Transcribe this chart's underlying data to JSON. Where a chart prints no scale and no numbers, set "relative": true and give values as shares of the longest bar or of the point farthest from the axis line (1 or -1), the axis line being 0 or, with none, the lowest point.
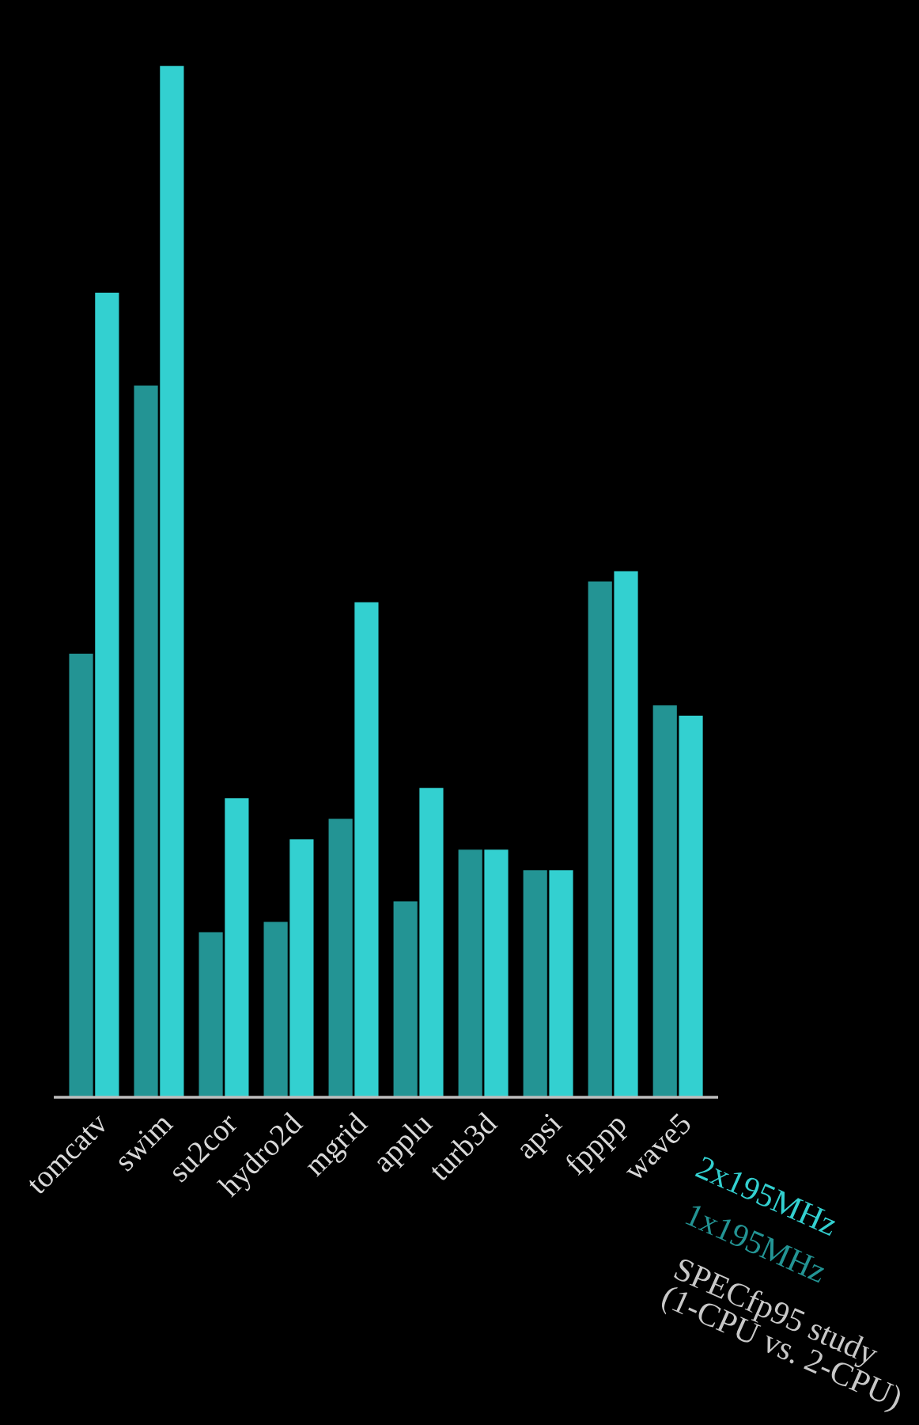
{
  "chart_data": {
    "type": "bar",
    "relative": true,
    "categories": [
      "tomcatv",
      "swim",
      "su2cor",
      "hydro2d",
      "mgrid",
      "applu",
      "turb3d",
      "apsi",
      "fpppp",
      "wave5"
    ],
    "series": [
      {
        "name": "1x195MHz",
        "color": "#239494",
        "values": [
          0.43,
          0.69,
          0.16,
          0.17,
          0.27,
          0.19,
          0.24,
          0.22,
          0.5,
          0.38
        ]
      },
      {
        "name": "2x195MHz",
        "color": "#33d0d0",
        "values": [
          0.78,
          1.0,
          0.29,
          0.25,
          0.48,
          0.3,
          0.24,
          0.22,
          0.51,
          0.37
        ]
      }
    ],
    "legend": "bottom right",
    "annotations": [
      "SPECfp95 study\n(1-CPU vs. 2-CPU)"
    ]
  }
}
